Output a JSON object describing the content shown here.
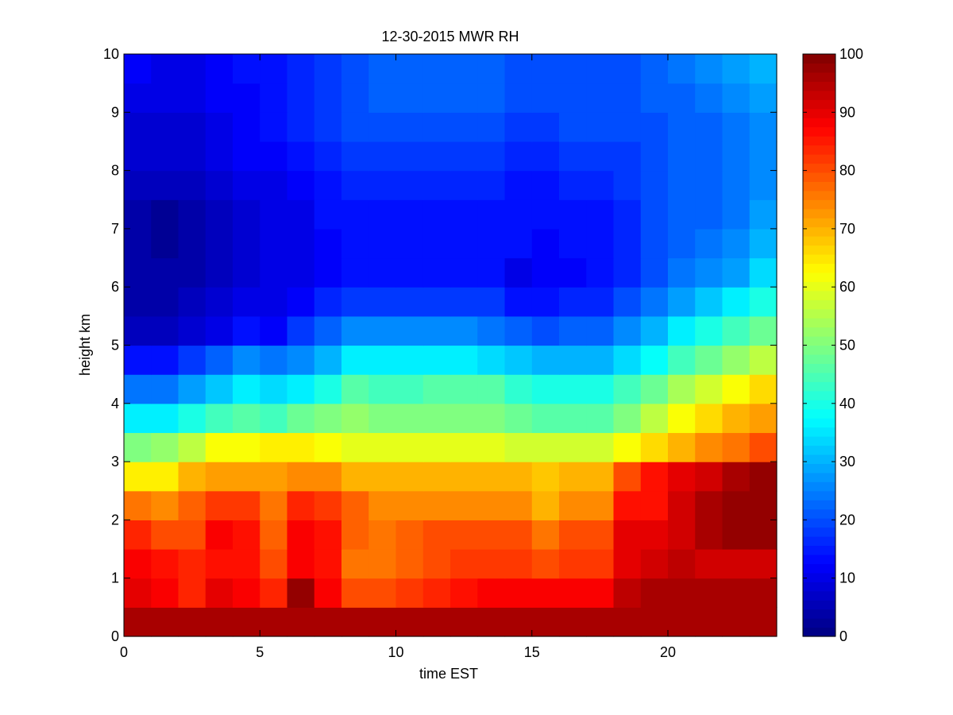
{
  "chart_data": {
    "type": "heatmap",
    "title": "12-30-2015 MWR RH",
    "xlabel": "time EST",
    "ylabel": "height km",
    "xlim": [
      0,
      24
    ],
    "ylim": [
      0,
      10
    ],
    "x_ticks": [
      0,
      5,
      10,
      15,
      20
    ],
    "y_ticks": [
      0,
      1,
      2,
      3,
      4,
      5,
      6,
      7,
      8,
      9,
      10
    ],
    "colorbar": {
      "min": 0,
      "max": 100,
      "ticks": [
        0,
        10,
        20,
        30,
        40,
        50,
        60,
        70,
        80,
        90,
        100
      ],
      "colormap": "jet"
    },
    "grid": false,
    "x": [
      0,
      1,
      2,
      3,
      4,
      5,
      6,
      7,
      8,
      9,
      10,
      11,
      12,
      13,
      14,
      15,
      16,
      17,
      18,
      19,
      20,
      21,
      22,
      23
    ],
    "y": [
      0,
      0.5,
      1,
      1.5,
      2,
      2.5,
      3,
      3.5,
      4,
      4.5,
      5,
      5.5,
      6,
      6.5,
      7,
      7.5,
      8,
      8.5,
      9,
      9.5
    ],
    "z": [
      [
        96,
        96,
        96,
        96,
        96,
        96,
        96,
        96,
        96,
        96,
        96,
        96,
        96,
        96,
        96,
        96,
        96,
        96,
        96,
        96,
        96,
        96,
        96,
        96
      ],
      [
        90,
        88,
        84,
        90,
        88,
        84,
        98,
        88,
        80,
        80,
        82,
        84,
        86,
        88,
        88,
        88,
        88,
        88,
        94,
        96,
        96,
        96,
        96,
        96
      ],
      [
        88,
        86,
        84,
        86,
        86,
        80,
        88,
        86,
        76,
        76,
        78,
        80,
        82,
        82,
        82,
        80,
        82,
        82,
        90,
        92,
        94,
        92,
        92,
        92
      ],
      [
        84,
        80,
        80,
        88,
        86,
        78,
        88,
        86,
        78,
        76,
        78,
        80,
        80,
        80,
        80,
        76,
        80,
        80,
        90,
        90,
        92,
        96,
        98,
        98
      ],
      [
        76,
        74,
        78,
        82,
        82,
        76,
        84,
        82,
        78,
        74,
        74,
        74,
        74,
        74,
        74,
        70,
        74,
        74,
        86,
        86,
        92,
        96,
        98,
        98
      ],
      [
        64,
        64,
        70,
        72,
        72,
        72,
        74,
        74,
        70,
        70,
        70,
        70,
        70,
        70,
        70,
        68,
        70,
        70,
        80,
        86,
        90,
        92,
        96,
        98
      ],
      [
        50,
        52,
        56,
        62,
        62,
        64,
        64,
        62,
        60,
        60,
        60,
        60,
        60,
        60,
        58,
        58,
        58,
        58,
        62,
        66,
        70,
        74,
        76,
        80
      ],
      [
        36,
        36,
        40,
        44,
        46,
        44,
        48,
        50,
        52,
        50,
        50,
        50,
        50,
        50,
        48,
        46,
        46,
        46,
        50,
        56,
        62,
        66,
        70,
        72
      ],
      [
        24,
        24,
        28,
        32,
        36,
        34,
        36,
        40,
        46,
        44,
        44,
        46,
        46,
        46,
        42,
        40,
        40,
        40,
        44,
        48,
        54,
        58,
        62,
        66
      ],
      [
        14,
        14,
        18,
        22,
        26,
        24,
        26,
        30,
        36,
        36,
        36,
        36,
        36,
        34,
        32,
        30,
        30,
        30,
        34,
        38,
        44,
        48,
        52,
        56
      ],
      [
        6,
        6,
        8,
        10,
        14,
        12,
        18,
        22,
        26,
        26,
        26,
        26,
        26,
        24,
        22,
        20,
        22,
        22,
        26,
        30,
        36,
        40,
        44,
        48
      ],
      [
        4,
        4,
        6,
        8,
        10,
        10,
        12,
        16,
        18,
        18,
        18,
        18,
        18,
        18,
        14,
        14,
        16,
        16,
        20,
        24,
        28,
        32,
        36,
        40
      ],
      [
        4,
        4,
        4,
        6,
        8,
        10,
        10,
        12,
        14,
        14,
        14,
        14,
        14,
        14,
        10,
        12,
        12,
        14,
        16,
        20,
        24,
        26,
        28,
        34
      ],
      [
        4,
        2,
        4,
        6,
        8,
        10,
        10,
        12,
        14,
        14,
        14,
        14,
        14,
        14,
        14,
        12,
        14,
        14,
        16,
        20,
        22,
        24,
        26,
        30
      ],
      [
        4,
        2,
        4,
        6,
        8,
        10,
        10,
        14,
        14,
        14,
        14,
        14,
        14,
        14,
        14,
        14,
        14,
        14,
        16,
        20,
        22,
        22,
        24,
        28
      ],
      [
        6,
        6,
        6,
        8,
        10,
        10,
        12,
        14,
        16,
        16,
        16,
        16,
        16,
        16,
        14,
        14,
        16,
        16,
        18,
        20,
        22,
        22,
        24,
        26
      ],
      [
        8,
        8,
        8,
        10,
        12,
        12,
        14,
        16,
        18,
        18,
        18,
        18,
        18,
        18,
        16,
        16,
        18,
        18,
        18,
        20,
        22,
        22,
        24,
        26
      ],
      [
        8,
        8,
        8,
        10,
        12,
        14,
        16,
        18,
        20,
        20,
        20,
        20,
        20,
        20,
        18,
        18,
        20,
        20,
        20,
        20,
        22,
        22,
        24,
        26
      ],
      [
        10,
        10,
        10,
        12,
        12,
        14,
        16,
        18,
        20,
        22,
        22,
        22,
        22,
        22,
        20,
        20,
        20,
        20,
        20,
        22,
        22,
        24,
        26,
        28
      ],
      [
        12,
        10,
        10,
        12,
        14,
        14,
        16,
        18,
        20,
        22,
        22,
        22,
        22,
        22,
        20,
        20,
        20,
        20,
        20,
        22,
        24,
        26,
        28,
        30
      ]
    ]
  }
}
